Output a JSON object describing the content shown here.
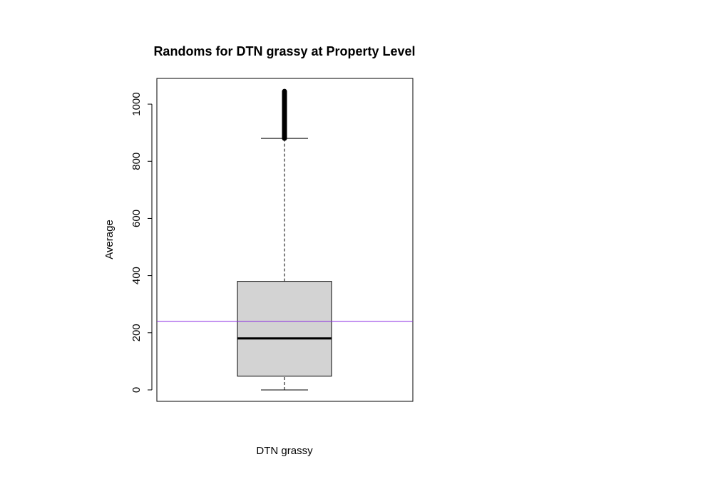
{
  "chart_data": {
    "type": "boxplot",
    "title": "Randoms for DTN grassy at Property Level",
    "xlabel": "DTN grassy",
    "ylabel": "Average",
    "ylim": [
      -40,
      1090
    ],
    "yticks": [
      0,
      200,
      400,
      600,
      800,
      1000
    ],
    "grid": false,
    "legend": "none",
    "box": {
      "whisker_low": 0,
      "q1": 48,
      "median": 180,
      "q3": 380,
      "whisker_high": 880,
      "outlier_min": 880,
      "outlier_max": 1045,
      "fill_color": "#d3d3d3"
    },
    "reference_line": {
      "value": 240,
      "color": "#8a2be2"
    }
  }
}
